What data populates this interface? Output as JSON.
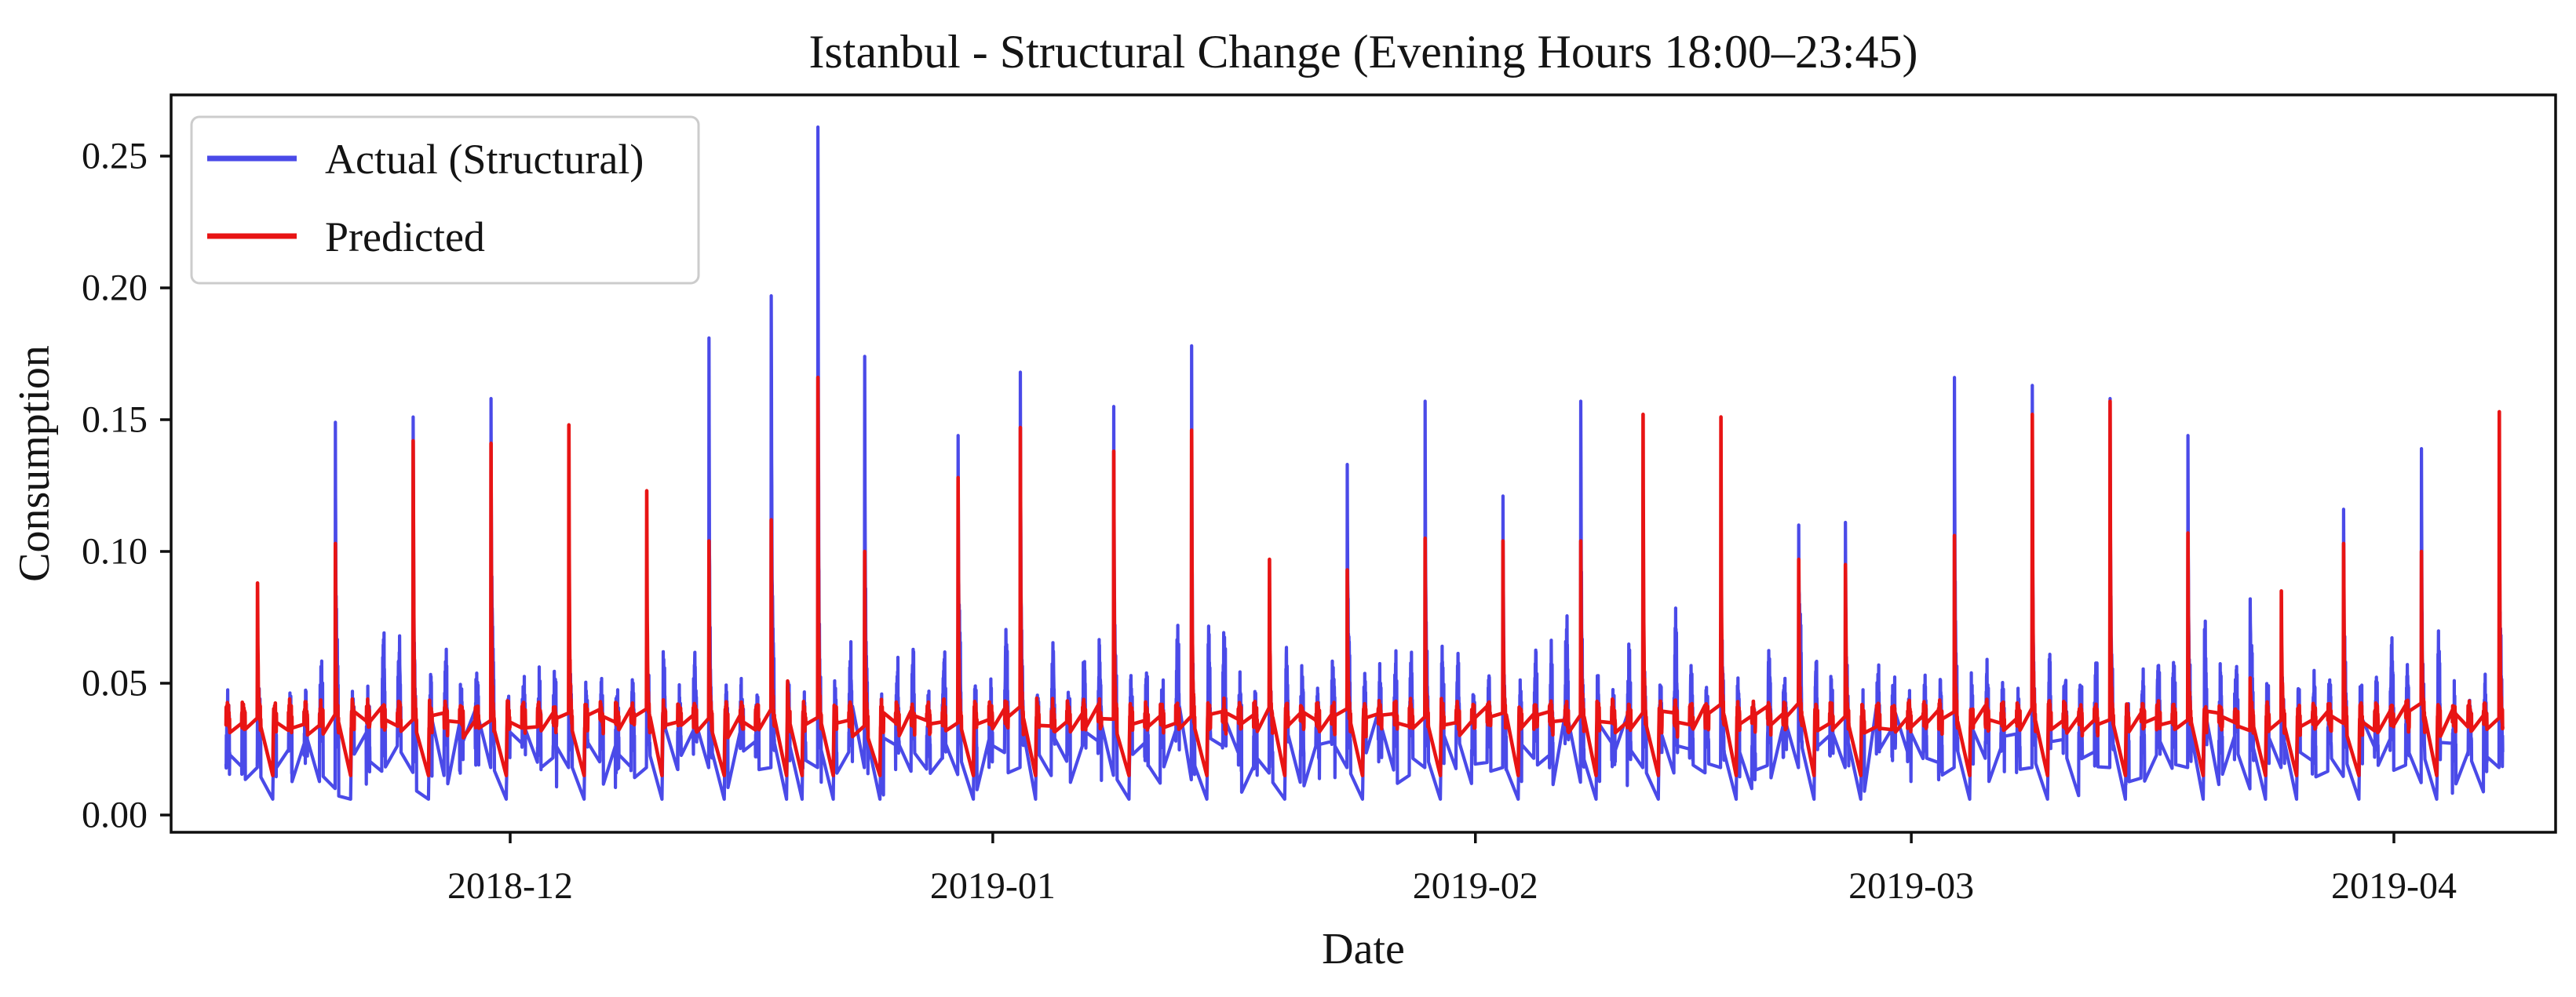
{
  "figure": {
    "title": "Istanbul - Structural Change (Evening Hours 18:00–23:45)",
    "x_axis": {
      "label": "Date",
      "tick_labels": [
        "2018-12",
        "2019-01",
        "2019-02",
        "2019-03",
        "2019-04"
      ]
    },
    "y_axis": {
      "label": "Consumption",
      "tick_labels": [
        "0.00",
        "0.05",
        "0.10",
        "0.15",
        "0.20",
        "0.25"
      ]
    },
    "legend": {
      "items": [
        {
          "label": "Actual (Structural)",
          "color": "#4A4AE8"
        },
        {
          "label": "Predicted",
          "color": "#E81414"
        }
      ]
    },
    "colors": {
      "frame": "#0f0f0f",
      "text": "#141414",
      "legend_border": "#cccccc",
      "background": "#ffffff"
    }
  },
  "chart_data": {
    "type": "line",
    "title": "Istanbul - Structural Change (Evening Hours 18:00–23:45)",
    "xlabel": "Date",
    "ylabel": "Consumption",
    "x_ticks": [
      "2018-12",
      "2019-01",
      "2019-02",
      "2019-03",
      "2019-04"
    ],
    "y_ticks": [
      0.0,
      0.05,
      0.1,
      0.15,
      0.2,
      0.25
    ],
    "ylim": [
      -0.006,
      0.273
    ],
    "x_start": "2018-11-12",
    "x_end": "2019-04-07",
    "points_per_day": 24,
    "evening_window": "18:00–23:45",
    "grid": false,
    "legend_position": "upper left",
    "series": [
      {
        "name": "Actual (Structural)",
        "color": "#4A4AE8",
        "baseline_level": 0.035,
        "baseline_range": [
          0.008,
          0.065
        ]
      },
      {
        "name": "Predicted",
        "color": "#E81414",
        "baseline_level": 0.037,
        "baseline_range": [
          0.028,
          0.048
        ]
      }
    ],
    "peak_events": [
      {
        "date": "2018-11-14",
        "actual": 0.055,
        "predicted": 0.088
      },
      {
        "date": "2018-11-19",
        "actual": 0.149,
        "predicted": 0.103
      },
      {
        "date": "2018-11-24",
        "actual": 0.151,
        "predicted": 0.142
      },
      {
        "date": "2018-11-29",
        "actual": 0.158,
        "predicted": 0.141
      },
      {
        "date": "2018-12-04",
        "actual": 0.1,
        "predicted": 0.148
      },
      {
        "date": "2018-12-09",
        "actual": 0.065,
        "predicted": 0.123
      },
      {
        "date": "2018-12-13",
        "actual": 0.181,
        "predicted": 0.104
      },
      {
        "date": "2018-12-17",
        "actual": 0.197,
        "predicted": 0.112
      },
      {
        "date": "2018-12-18",
        "actual": 0.06,
        "predicted": 0.077
      },
      {
        "date": "2018-12-20",
        "actual": 0.261,
        "predicted": 0.166
      },
      {
        "date": "2018-12-23",
        "actual": 0.174,
        "predicted": 0.1
      },
      {
        "date": "2018-12-29",
        "actual": 0.144,
        "predicted": 0.128
      },
      {
        "date": "2019-01-02",
        "actual": 0.168,
        "predicted": 0.147
      },
      {
        "date": "2019-01-08",
        "actual": 0.155,
        "predicted": 0.138
      },
      {
        "date": "2019-01-13",
        "actual": 0.178,
        "predicted": 0.146
      },
      {
        "date": "2019-01-18",
        "actual": 0.075,
        "predicted": 0.097
      },
      {
        "date": "2019-01-23",
        "actual": 0.133,
        "predicted": 0.093
      },
      {
        "date": "2019-01-28",
        "actual": 0.157,
        "predicted": 0.105
      },
      {
        "date": "2019-02-02",
        "actual": 0.121,
        "predicted": 0.104
      },
      {
        "date": "2019-02-07",
        "actual": 0.157,
        "predicted": 0.104
      },
      {
        "date": "2019-02-11",
        "actual": 0.098,
        "predicted": 0.152
      },
      {
        "date": "2019-02-16",
        "actual": 0.093,
        "predicted": 0.151
      },
      {
        "date": "2019-02-21",
        "actual": 0.11,
        "predicted": 0.097
      },
      {
        "date": "2019-02-24",
        "actual": 0.111,
        "predicted": 0.095
      },
      {
        "date": "2019-03-03",
        "actual": 0.166,
        "predicted": 0.106
      },
      {
        "date": "2019-03-08",
        "actual": 0.163,
        "predicted": 0.152
      },
      {
        "date": "2019-03-13",
        "actual": 0.158,
        "predicted": 0.157
      },
      {
        "date": "2019-03-18",
        "actual": 0.144,
        "predicted": 0.107
      },
      {
        "date": "2019-03-22",
        "actual": 0.082,
        "predicted": 0.052
      },
      {
        "date": "2019-03-24",
        "actual": 0.06,
        "predicted": 0.085
      },
      {
        "date": "2019-03-28",
        "actual": 0.116,
        "predicted": 0.103
      },
      {
        "date": "2019-04-02",
        "actual": 0.139,
        "predicted": 0.1
      },
      {
        "date": "2019-04-07",
        "actual": 0.14,
        "predicted": 0.153
      }
    ]
  }
}
